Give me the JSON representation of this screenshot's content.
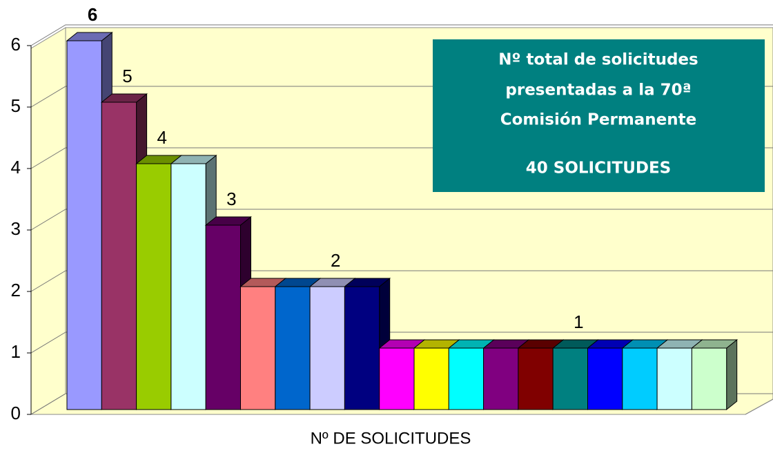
{
  "chart_data": {
    "type": "bar3d",
    "x_label": "Nº DE SOLICITUDES",
    "annotation": {
      "lines": [
        "Nº  total de solicitudes",
        "presentadas a la 70ª",
        "Comisión Permanente"
      ],
      "total": "40 SOLICITUDES"
    },
    "categories": [
      null,
      null,
      null,
      null,
      null,
      null,
      null,
      null,
      null,
      null,
      null,
      null,
      null,
      null,
      null,
      null,
      null,
      null,
      null
    ],
    "values": [
      6,
      5,
      4,
      4,
      3,
      2,
      2,
      2,
      2,
      1,
      1,
      1,
      1,
      1,
      1,
      1,
      1,
      1,
      1
    ],
    "value_labels": [
      "6",
      "5",
      "4",
      null,
      "3",
      null,
      null,
      "2",
      null,
      null,
      null,
      null,
      null,
      null,
      "1",
      null,
      null,
      null,
      null
    ],
    "colors": [
      "#9999ff",
      "#993366",
      "#99cc00",
      "#ccffff",
      "#660066",
      "#ff8080",
      "#0066cc",
      "#ccccff",
      "#000080",
      "#ff00ff",
      "#ffff00",
      "#00ffff",
      "#800080",
      "#800000",
      "#008080",
      "#0000ff",
      "#00ccff",
      "#ccffff",
      "#ccffcc"
    ],
    "ylim": [
      0,
      6
    ],
    "yticks": [
      0,
      1,
      2,
      3,
      4,
      5,
      6
    ],
    "grid": true
  }
}
